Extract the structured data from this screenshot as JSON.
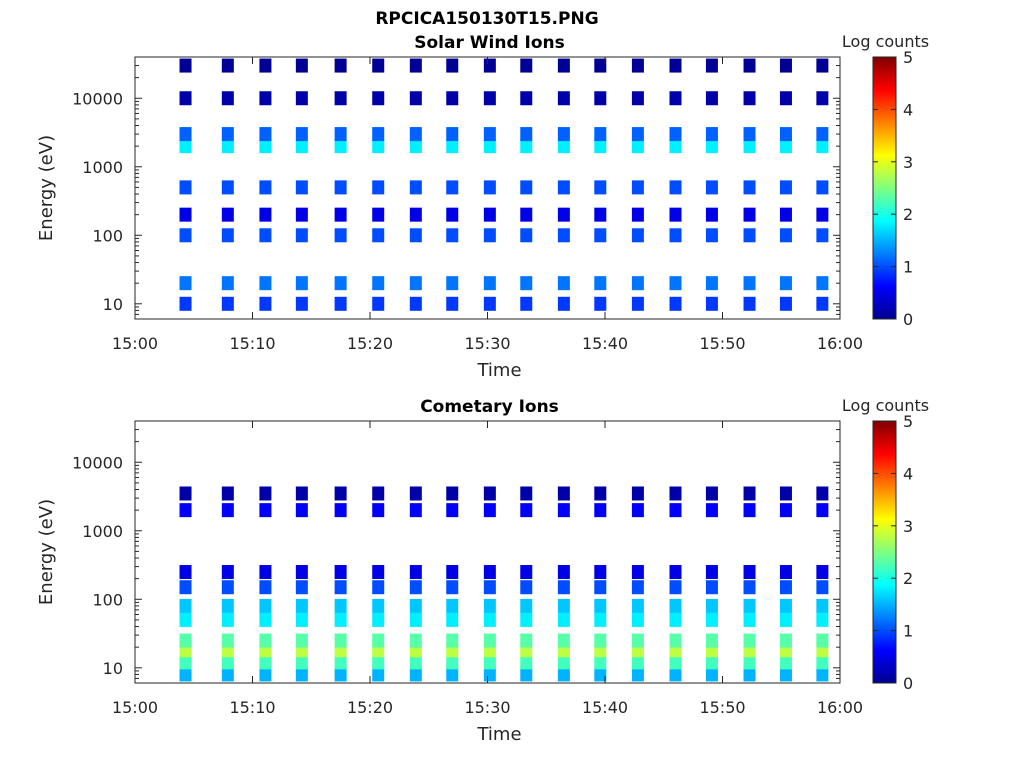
{
  "figure": {
    "title": "RPCICA150130T15.PNG"
  },
  "chart_data": [
    {
      "type": "heatmap",
      "title": "Solar Wind Ions",
      "xlabel": "Time",
      "ylabel": "Energy (eV)",
      "x_ticks": [
        "15:00",
        "15:10",
        "15:20",
        "15:30",
        "15:40",
        "15:50",
        "16:00"
      ],
      "y_ticks": [
        "10",
        "100",
        "1000",
        "10000"
      ],
      "y_scale": "log",
      "ylim": [
        6,
        40000
      ],
      "xlim": [
        "15:00",
        "16:00"
      ],
      "colorbar": {
        "label": "Log counts",
        "ticks": [
          "0",
          "1",
          "2",
          "3",
          "4",
          "5"
        ],
        "range": [
          0,
          5
        ],
        "colormap": "jet"
      },
      "scan_times_min": [
        4.3,
        7.9,
        11.1,
        14.2,
        17.5,
        20.7,
        23.9,
        27.0,
        30.2,
        33.3,
        36.5,
        39.6,
        42.8,
        46.0,
        49.1,
        52.3,
        55.4,
        58.5
      ],
      "bands": [
        {
          "energy_eV": 10,
          "log_counts": 0.9
        },
        {
          "energy_eV": 20,
          "log_counts": 1.2
        },
        {
          "energy_eV": 100,
          "log_counts": 1.0
        },
        {
          "energy_eV": 200,
          "log_counts": 0.5
        },
        {
          "energy_eV": 500,
          "log_counts": 1.0
        },
        {
          "energy_eV": 2000,
          "log_counts": 1.8
        },
        {
          "energy_eV": 3000,
          "log_counts": 1.1
        },
        {
          "energy_eV": 10000,
          "log_counts": 0.2
        },
        {
          "energy_eV": 30000,
          "log_counts": 0.1
        }
      ]
    },
    {
      "type": "heatmap",
      "title": "Cometary Ions",
      "xlabel": "Time",
      "ylabel": "Energy (eV)",
      "x_ticks": [
        "15:00",
        "15:10",
        "15:20",
        "15:30",
        "15:40",
        "15:50",
        "16:00"
      ],
      "y_ticks": [
        "10",
        "100",
        "1000",
        "10000"
      ],
      "y_scale": "log",
      "ylim": [
        6,
        40000
      ],
      "xlim": [
        "15:00",
        "16:00"
      ],
      "colorbar": {
        "label": "Log counts",
        "ticks": [
          "0",
          "1",
          "2",
          "3",
          "4",
          "5"
        ],
        "range": [
          0,
          5
        ],
        "colormap": "jet"
      },
      "scan_times_min": [
        4.3,
        7.9,
        11.1,
        14.2,
        17.5,
        20.7,
        23.9,
        27.0,
        30.2,
        33.3,
        36.5,
        39.6,
        42.8,
        46.0,
        49.1,
        52.3,
        55.4,
        58.5
      ],
      "bands": [
        {
          "energy_eV": 8,
          "log_counts": 1.5
        },
        {
          "energy_eV": 12,
          "log_counts": 2.2
        },
        {
          "energy_eV": 18,
          "log_counts": 2.8
        },
        {
          "energy_eV": 25,
          "log_counts": 2.3
        },
        {
          "energy_eV": 50,
          "log_counts": 1.8
        },
        {
          "energy_eV": 80,
          "log_counts": 1.6
        },
        {
          "energy_eV": 150,
          "log_counts": 1.0
        },
        {
          "energy_eV": 250,
          "log_counts": 0.5
        },
        {
          "energy_eV": 2000,
          "log_counts": 0.6
        },
        {
          "energy_eV": 3500,
          "log_counts": 0.2
        }
      ]
    }
  ]
}
